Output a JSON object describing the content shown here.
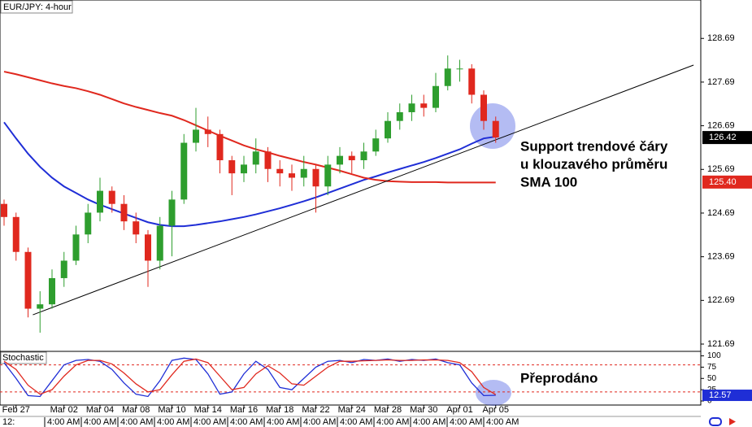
{
  "chart_data": {
    "type": "candlestick",
    "title": "EUR/JPY: 4-hour",
    "categories": [
      null,
      "Feb 27",
      null,
      null,
      null,
      "Mar 02",
      null,
      null,
      "Mar 04",
      null,
      null,
      "Mar 08",
      null,
      null,
      "Mar 10",
      null,
      null,
      "Mar 14",
      null,
      null,
      "Mar 16",
      null,
      null,
      "Mar 18",
      null,
      null,
      "Mar 22",
      null,
      null,
      "Mar 24",
      null,
      null,
      "Mar 28",
      null,
      null,
      "Mar 30",
      null,
      null,
      "Apr 01",
      null,
      null,
      "Apr 05"
    ],
    "open": [
      124.9,
      124.6,
      123.8,
      122.5,
      122.6,
      123.2,
      123.6,
      124.2,
      124.7,
      125.2,
      124.9,
      124.5,
      124.2,
      123.6,
      124.4,
      125.0,
      126.3,
      126.6,
      126.5,
      125.9,
      125.6,
      125.8,
      126.1,
      125.7,
      125.6,
      125.5,
      125.7,
      125.3,
      125.8,
      126.0,
      125.9,
      126.1,
      126.4,
      126.8,
      127.0,
      127.2,
      127.1,
      127.6,
      128.0,
      128.0,
      127.4,
      126.8
    ],
    "high": [
      125.0,
      124.7,
      123.9,
      122.9,
      123.4,
      123.8,
      124.4,
      124.9,
      125.5,
      125.3,
      125.1,
      124.7,
      124.3,
      124.6,
      125.2,
      126.5,
      127.1,
      126.9,
      126.6,
      126.0,
      126.0,
      126.4,
      126.2,
      125.9,
      125.8,
      126.0,
      125.8,
      126.0,
      126.2,
      126.1,
      126.3,
      126.6,
      127.0,
      127.2,
      127.4,
      127.4,
      127.9,
      128.3,
      128.2,
      128.1,
      127.5,
      126.9
    ],
    "low": [
      124.4,
      123.6,
      122.3,
      121.95,
      122.5,
      123.0,
      123.5,
      124.0,
      124.5,
      124.7,
      124.3,
      124.0,
      123.0,
      123.4,
      123.7,
      124.9,
      126.1,
      126.2,
      125.6,
      125.1,
      125.4,
      125.6,
      125.4,
      125.3,
      125.2,
      125.3,
      124.7,
      125.1,
      125.6,
      125.6,
      125.7,
      126.0,
      126.3,
      126.6,
      126.8,
      126.9,
      127.0,
      127.5,
      127.7,
      127.2,
      126.6,
      126.3
    ],
    "close": [
      124.6,
      123.8,
      122.5,
      122.6,
      123.2,
      123.6,
      124.2,
      124.7,
      125.2,
      124.9,
      124.5,
      124.2,
      123.6,
      124.4,
      125.0,
      126.3,
      126.6,
      126.5,
      125.9,
      125.6,
      125.8,
      126.1,
      125.7,
      125.6,
      125.5,
      125.7,
      125.3,
      125.8,
      126.0,
      125.9,
      126.1,
      126.4,
      126.8,
      127.0,
      127.2,
      127.1,
      127.6,
      128.0,
      128.0,
      127.4,
      126.8,
      126.42
    ],
    "up_color": "#2e9e2e",
    "down_color": "#e0281e",
    "ylim": [
      121.56,
      129.57
    ],
    "yticks": [
      128.69,
      127.69,
      126.69,
      125.69,
      124.69,
      123.69,
      122.69,
      121.69
    ],
    "overlays": [
      {
        "color": "#1f2ed6",
        "values": [
          126.77,
          126.4,
          126.05,
          125.75,
          125.5,
          125.3,
          125.15,
          125.0,
          124.88,
          124.78,
          124.68,
          124.58,
          124.48,
          124.42,
          124.39,
          124.39,
          124.42,
          124.46,
          124.5,
          124.55,
          124.6,
          124.66,
          124.73,
          124.8,
          124.88,
          124.96,
          125.05,
          125.15,
          125.25,
          125.35,
          125.45,
          125.53,
          125.62,
          125.7,
          125.78,
          125.86,
          125.95,
          126.05,
          126.15,
          126.28,
          126.4,
          126.44
        ]
      },
      {
        "color": "#e0281e",
        "values": [
          127.93,
          127.87,
          127.8,
          127.73,
          127.66,
          127.6,
          127.55,
          127.48,
          127.4,
          127.3,
          127.2,
          127.12,
          127.05,
          126.98,
          126.92,
          126.82,
          126.7,
          126.58,
          126.46,
          126.35,
          126.24,
          126.15,
          126.08,
          126.0,
          125.93,
          125.86,
          125.8,
          125.73,
          125.66,
          125.58,
          125.5,
          125.45,
          125.42,
          125.41,
          125.4,
          125.4,
          125.4,
          125.39,
          125.39,
          125.39,
          125.39,
          125.39
        ]
      }
    ],
    "trendline": {
      "x": [
        2.4,
        57.5
      ],
      "y": [
        122.36,
        128.08
      ],
      "color": "#000000"
    },
    "price_tags": [
      {
        "value": 126.42,
        "color": "#000000"
      },
      {
        "value": 125.4,
        "label": "125.40",
        "color": "#e0281e"
      }
    ],
    "annotations": [
      {
        "lines": [
          "Support trendové čáry",
          "u klouzavého průměru",
          "SMA 100"
        ]
      },
      {
        "lines": [
          "Přeprodáno"
        ]
      }
    ],
    "time_labels": [
      "12:",
      "4:00 AM",
      "4:00 AM",
      "4:00 AM",
      "4:00 AM",
      "4:00 AM",
      "4:00 AM",
      "4:00 AM",
      "4:00 AM",
      "4:00 AM",
      "4:00 AM",
      "4:00 AM",
      "4:00 AM",
      "4:00 AM"
    ],
    "stochastic": {
      "type": "line",
      "title": "Stochastic",
      "ylim": [
        -9,
        110
      ],
      "yticks": [
        100,
        75,
        50,
        25,
        0
      ],
      "levels": [
        80,
        20
      ],
      "level_color": "#e0281e",
      "series": [
        {
          "color": "#1f2ed6",
          "values": [
            85,
            50,
            12,
            10,
            45,
            80,
            90,
            92,
            88,
            70,
            40,
            15,
            10,
            45,
            90,
            95,
            92,
            60,
            15,
            20,
            60,
            88,
            70,
            30,
            25,
            50,
            75,
            88,
            90,
            85,
            92,
            90,
            93,
            88,
            92,
            90,
            93,
            85,
            80,
            40,
            12,
            12.57
          ]
        },
        {
          "color": "#e0281e",
          "values": [
            88,
            70,
            35,
            15,
            25,
            55,
            80,
            90,
            90,
            82,
            62,
            38,
            20,
            25,
            58,
            88,
            93,
            85,
            55,
            25,
            30,
            60,
            78,
            62,
            38,
            35,
            55,
            75,
            88,
            88,
            89,
            90,
            91,
            90,
            90,
            91,
            91,
            90,
            85,
            65,
            30,
            14
          ]
        }
      ],
      "last_tag": {
        "value": 12.57,
        "color": "#1f2ed6"
      }
    }
  }
}
